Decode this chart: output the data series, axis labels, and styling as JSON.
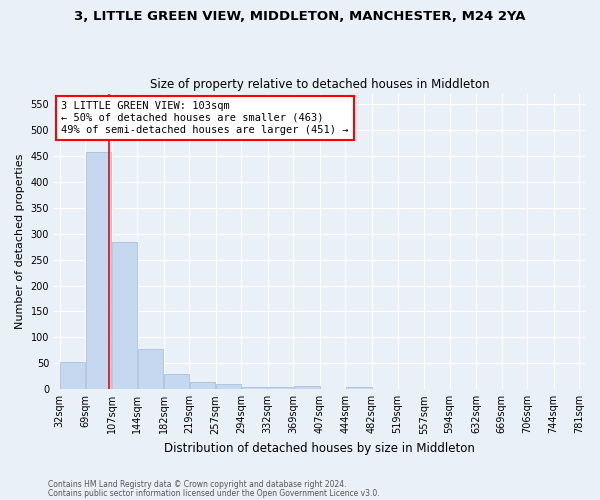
{
  "title1": "3, LITTLE GREEN VIEW, MIDDLETON, MANCHESTER, M24 2YA",
  "title2": "Size of property relative to detached houses in Middleton",
  "xlabel": "Distribution of detached houses by size in Middleton",
  "ylabel": "Number of detached properties",
  "footnote1": "Contains HM Land Registry data © Crown copyright and database right 2024.",
  "footnote2": "Contains public sector information licensed under the Open Government Licence v3.0.",
  "bin_edges": [
    32,
    69,
    107,
    144,
    182,
    219,
    257,
    294,
    332,
    369,
    407,
    444,
    482,
    519,
    557,
    594,
    632,
    669,
    706,
    744,
    781
  ],
  "bar_heights": [
    53,
    457,
    283,
    78,
    30,
    15,
    10,
    5,
    5,
    6,
    0,
    5,
    0,
    0,
    0,
    0,
    0,
    0,
    0,
    0
  ],
  "bar_color": "#c5d8f0",
  "bar_edge_color": "#a0bcd8",
  "red_line_x": 103,
  "ylim": [
    0,
    570
  ],
  "yticks": [
    0,
    50,
    100,
    150,
    200,
    250,
    300,
    350,
    400,
    450,
    500,
    550
  ],
  "bg_color": "#eaf0f8",
  "annotation_text": "3 LITTLE GREEN VIEW: 103sqm\n← 50% of detached houses are smaller (463)\n49% of semi-detached houses are larger (451) →",
  "annotation_box_color": "white",
  "annotation_box_edge_color": "red",
  "title1_fontsize": 9.5,
  "title2_fontsize": 8.5,
  "ylabel_fontsize": 8,
  "xlabel_fontsize": 8.5,
  "tick_fontsize": 7,
  "annot_fontsize": 7.5,
  "footnote_fontsize": 5.5
}
